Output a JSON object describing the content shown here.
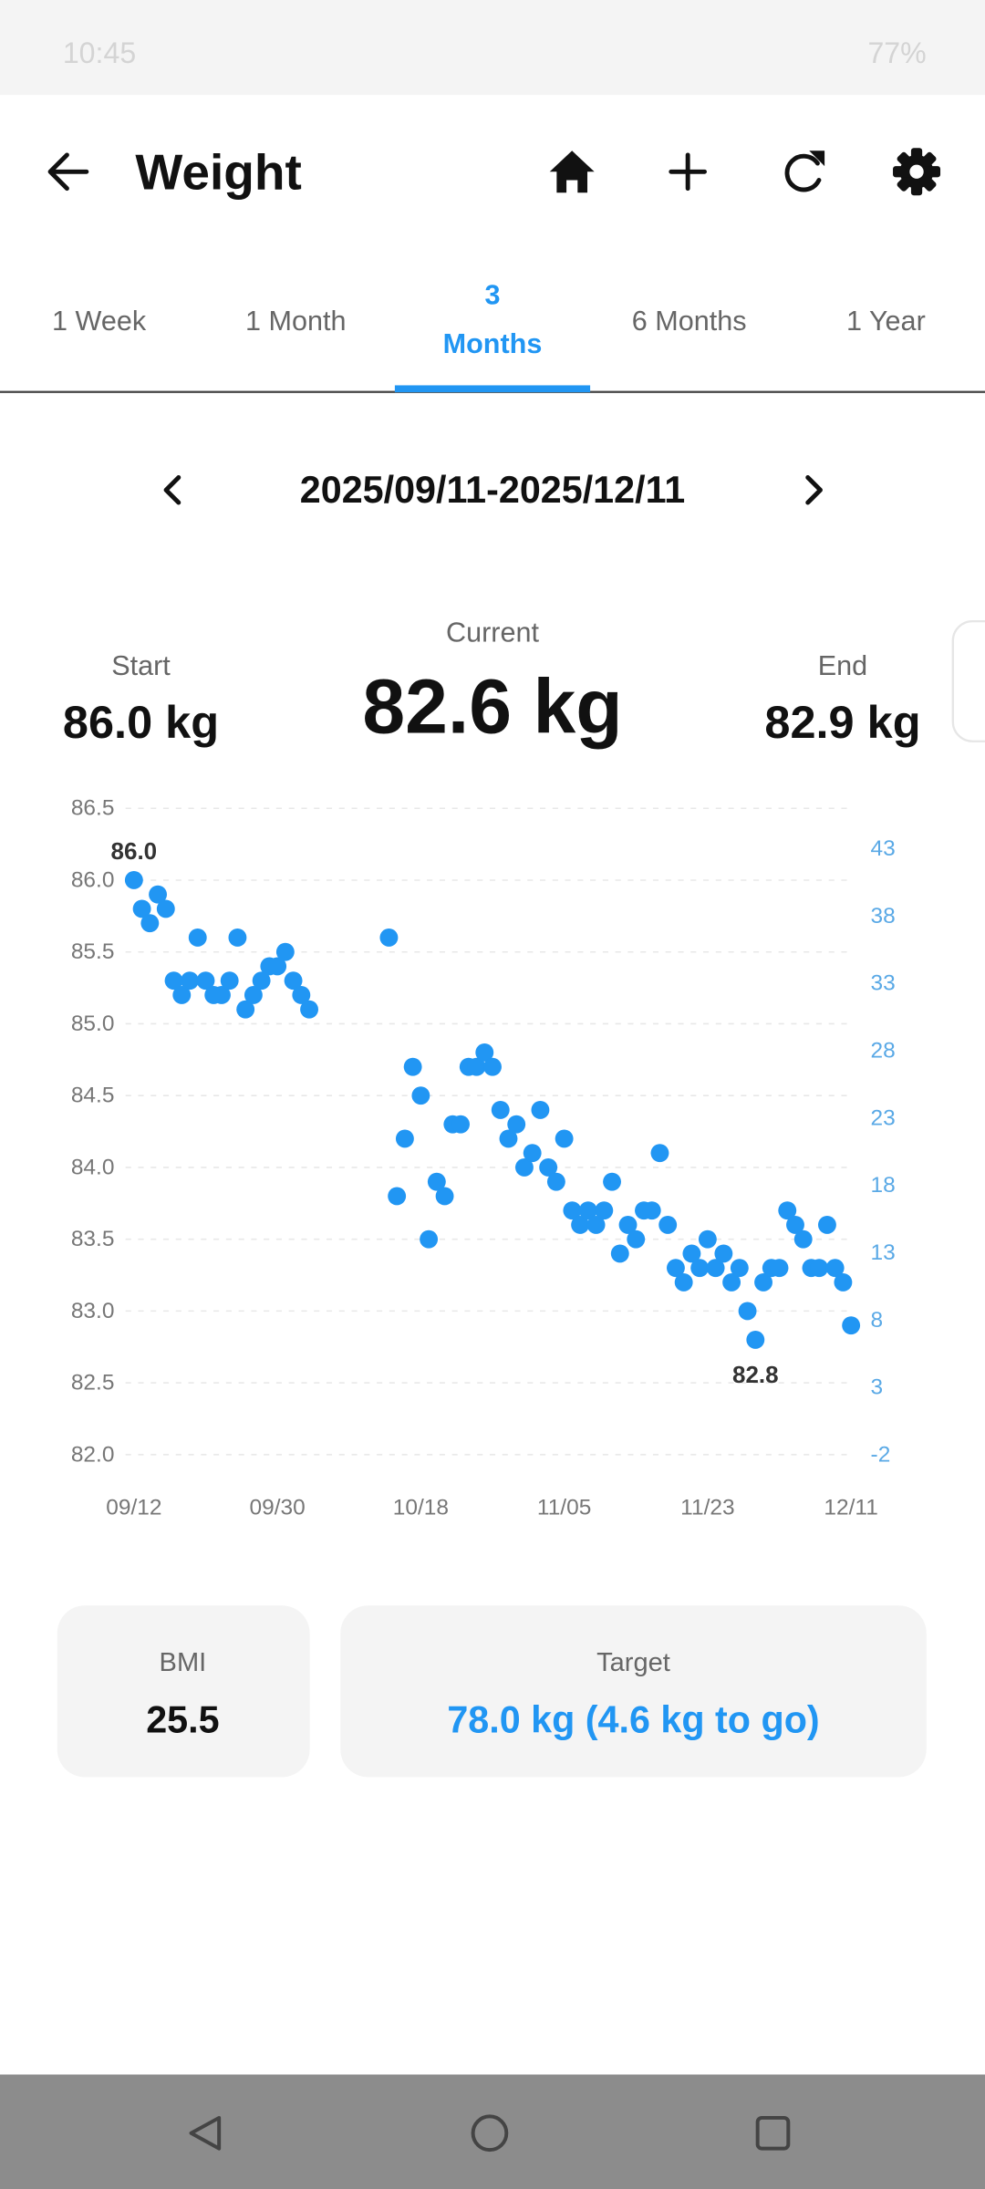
{
  "status_bar": {
    "time": "10:45",
    "battery": "77%"
  },
  "header": {
    "title": "Weight"
  },
  "tabs": [
    "1 Week",
    "1 Month",
    "3 Months",
    "6 Months",
    "1 Year"
  ],
  "date_range": "2025/09/11-2025/12/11",
  "summary": {
    "start_label": "Start",
    "start": "86.0 kg",
    "current_label": "Current",
    "current": "82.6 kg",
    "end_label": "End",
    "end": "82.9 kg"
  },
  "chart_data": {
    "type": "line",
    "color": "#2196f3",
    "y2_color": "#5aa9e6",
    "grid": true,
    "x": [
      "09/12",
      "09/13",
      "09/14",
      "09/15",
      "09/16",
      "09/17",
      "09/18",
      "09/19",
      "09/20",
      "09/21",
      "09/22",
      "09/23",
      "09/24",
      "09/25",
      "09/26",
      "09/27",
      "09/28",
      "09/29",
      "09/30",
      "10/01",
      "10/02",
      "10/03",
      "10/04",
      "10/14",
      "10/15",
      "10/16",
      "10/17",
      "10/18",
      "10/19",
      "10/20",
      "10/21",
      "10/22",
      "10/23",
      "10/24",
      "10/25",
      "10/26",
      "10/27",
      "10/28",
      "10/29",
      "10/30",
      "10/31",
      "11/01",
      "11/02",
      "11/03",
      "11/04",
      "11/05",
      "11/06",
      "11/07",
      "11/08",
      "11/09",
      "11/10",
      "11/11",
      "11/12",
      "11/13",
      "11/14",
      "11/15",
      "11/16",
      "11/17",
      "11/18",
      "11/19",
      "11/20",
      "11/21",
      "11/22",
      "11/23",
      "11/24",
      "11/25",
      "11/26",
      "11/27",
      "11/28",
      "11/29",
      "11/30",
      "12/01",
      "12/02",
      "12/03",
      "12/04",
      "12/05",
      "12/06",
      "12/07",
      "12/08",
      "12/09",
      "12/10",
      "12/11"
    ],
    "values": [
      86.0,
      85.8,
      85.7,
      85.9,
      85.8,
      85.3,
      85.2,
      85.3,
      85.6,
      85.3,
      85.2,
      85.2,
      85.3,
      85.6,
      85.1,
      85.2,
      85.3,
      85.4,
      85.4,
      85.5,
      85.3,
      85.2,
      85.1,
      85.6,
      83.8,
      84.2,
      84.7,
      84.5,
      83.5,
      83.9,
      83.8,
      84.3,
      84.3,
      84.7,
      84.7,
      84.8,
      84.7,
      84.4,
      84.2,
      84.3,
      84.0,
      84.1,
      84.4,
      84.0,
      83.9,
      84.2,
      83.7,
      83.6,
      83.7,
      83.6,
      83.7,
      83.9,
      83.4,
      83.6,
      83.5,
      83.7,
      83.7,
      84.1,
      83.6,
      83.3,
      83.2,
      83.4,
      83.3,
      83.5,
      83.3,
      83.4,
      83.2,
      83.3,
      83.0,
      82.8,
      83.2,
      83.3,
      83.3,
      83.7,
      83.6,
      83.5,
      83.3,
      83.3,
      83.6,
      83.3,
      83.2,
      82.9
    ],
    "value_labels": [
      "86.0",
      null,
      null,
      null,
      null,
      null,
      null,
      null,
      null,
      null,
      null,
      null,
      null,
      null,
      null,
      null,
      null,
      null,
      null,
      null,
      null,
      null,
      null,
      null,
      null,
      null,
      null,
      null,
      null,
      null,
      null,
      null,
      null,
      null,
      null,
      null,
      null,
      null,
      null,
      null,
      null,
      null,
      null,
      null,
      null,
      null,
      null,
      null,
      null,
      null,
      null,
      null,
      null,
      null,
      null,
      null,
      null,
      null,
      null,
      null,
      null,
      null,
      null,
      null,
      null,
      null,
      null,
      null,
      null,
      "82.8",
      null,
      null,
      null,
      null,
      null,
      null,
      null,
      null,
      null,
      null,
      null,
      null
    ],
    "xlim": [
      "09/12",
      "12/11"
    ],
    "xticks": [
      "09/12",
      "09/30",
      "10/18",
      "11/05",
      "11/23",
      "12/11"
    ],
    "ylim": [
      82.0,
      86.5
    ],
    "yticks": [
      {
        "value": 82.0,
        "label": "82.0"
      },
      82.5,
      {
        "value": 83.0,
        "label": "83.0"
      },
      83.5,
      {
        "value": 84.0,
        "label": "84.0"
      },
      84.5,
      {
        "value": 85.0,
        "label": "85.0"
      },
      85.5,
      {
        "value": 86.0,
        "label": "86.0"
      },
      86.5
    ],
    "y2lim": [
      -2,
      46
    ],
    "y2ticks": [
      -2,
      3,
      8,
      13,
      18,
      23,
      28,
      33,
      38,
      43
    ]
  },
  "cards": {
    "bmi_label": "BMI",
    "bmi": "25.5",
    "target_label": "Target",
    "target": "78.0 kg (4.6 kg to go)"
  }
}
